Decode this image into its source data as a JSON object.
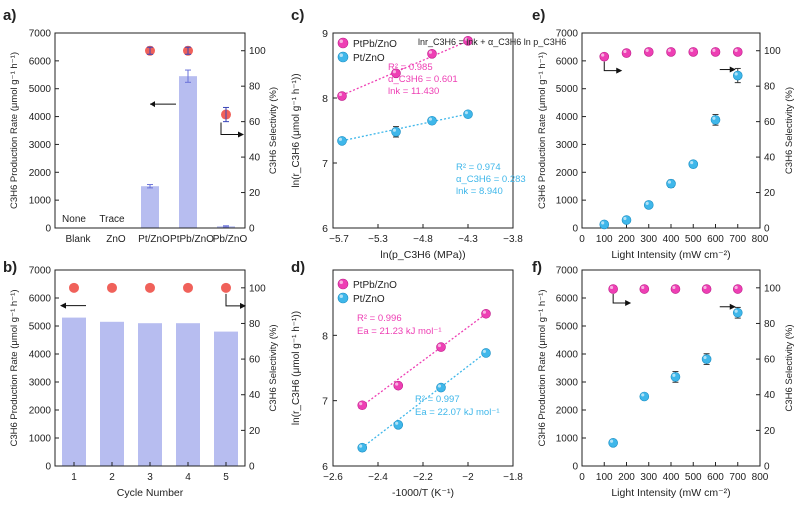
{
  "colors": {
    "bar": "#b7bdf0",
    "bar_edge": "#9aa2e8",
    "selectivity": "#f0615a",
    "ptpb": "#ee3fb4",
    "pt": "#3fb7ea",
    "axis": "#222222"
  },
  "chart_data": [
    {
      "id": "a",
      "panel_label": "a)",
      "type": "bar",
      "categories": [
        "Blank",
        "ZnO",
        "Pt/ZnO",
        "PtPb/ZnO",
        "Pb/ZnO"
      ],
      "series": [
        {
          "values": [
            0,
            0,
            1500,
            5450,
            60
          ],
          "errors": [
            0,
            0,
            60,
            220,
            20
          ],
          "axis": "left",
          "kind": "bar"
        },
        {
          "values": [
            null,
            null,
            100,
            100,
            64
          ],
          "errors": [
            0,
            0,
            2,
            2,
            4
          ],
          "axis": "right",
          "kind": "scatter"
        }
      ],
      "bar_annotations": [
        "None",
        "Trace",
        "",
        "",
        ""
      ],
      "ylabel": "C3H6 Production Rate (μmol g⁻¹ h⁻¹)",
      "y2label": "C3H6 Selectivity (%)",
      "ylim": [
        0,
        7000
      ],
      "yticks": [
        0,
        1000,
        2000,
        3000,
        4000,
        5000,
        6000,
        7000
      ],
      "y2lim": [
        0,
        110
      ],
      "y2ticks": [
        0,
        20,
        40,
        60,
        80,
        100
      ]
    },
    {
      "id": "b",
      "panel_label": "b)",
      "type": "bar",
      "categories": [
        "1",
        "2",
        "3",
        "4",
        "5"
      ],
      "series": [
        {
          "values": [
            5300,
            5150,
            5100,
            5100,
            4800
          ],
          "axis": "left",
          "kind": "bar"
        },
        {
          "values": [
            100,
            100,
            100,
            100,
            100
          ],
          "axis": "right",
          "kind": "scatter"
        }
      ],
      "xlabel": "Cycle Number",
      "ylabel": "C3H6 Production Rate (μmol g⁻¹ h⁻¹)",
      "y2label": "C3H6 Selectivity (%)",
      "ylim": [
        0,
        7000
      ],
      "yticks": [
        0,
        1000,
        2000,
        3000,
        4000,
        5000,
        6000,
        7000
      ],
      "y2lim": [
        0,
        110
      ],
      "y2ticks": [
        0,
        20,
        40,
        60,
        80,
        100
      ]
    },
    {
      "id": "c",
      "panel_label": "c)",
      "type": "scatter",
      "series": [
        {
          "name": "PtPb/ZnO",
          "x": [
            -5.7,
            -5.1,
            -4.7,
            -4.3
          ],
          "y": [
            8.03,
            8.38,
            8.68,
            8.88
          ],
          "errors": [
            0.04,
            0.04,
            0.04,
            0.04
          ],
          "fit": [
            8.02,
            8.89
          ]
        },
        {
          "name": "Pt/ZnO",
          "x": [
            -5.7,
            -5.1,
            -4.7,
            -4.3
          ],
          "y": [
            7.34,
            7.48,
            7.65,
            7.75
          ],
          "errors": [
            0.04,
            0.08,
            0.05,
            0.04
          ],
          "fit": [
            7.33,
            7.76
          ]
        }
      ],
      "equation": "lnr_C3H6 = lnk + α_C3H6 ln p_C3H6",
      "annotations": [
        {
          "r2": "R² = 0.985",
          "alpha": "α_C3H6 = 0.601",
          "lnk": "lnk = 11.430"
        },
        {
          "r2": "R² = 0.974",
          "alpha": "α_C3H6 = 0.283",
          "lnk": "lnk = 8.940"
        }
      ],
      "xlabel": "ln(p_C3H6 (MPa))",
      "ylabel": "ln(r_C3H6 (μmol g⁻¹ h⁻¹))",
      "xlim": [
        -5.8,
        -3.8
      ],
      "xticks": [
        -5.3,
        -4.8,
        -4.3,
        -3.8
      ],
      "xtick_extra": "-5.7",
      "ylim": [
        6,
        9
      ],
      "yticks": [
        6,
        7,
        8,
        9
      ]
    },
    {
      "id": "d",
      "panel_label": "d)",
      "type": "scatter",
      "series": [
        {
          "name": "PtPb/ZnO",
          "x": [
            -2.47,
            -2.31,
            -2.12,
            -1.92
          ],
          "y": [
            6.93,
            7.23,
            7.82,
            8.33
          ],
          "errors": [
            0.04,
            0.04,
            0.04,
            0.04
          ],
          "fit": [
            6.88,
            8.35
          ]
        },
        {
          "name": "Pt/ZnO",
          "x": [
            -2.47,
            -2.31,
            -2.12,
            -1.92
          ],
          "y": [
            6.28,
            6.63,
            7.2,
            7.73
          ],
          "errors": [
            0.04,
            0.04,
            0.04,
            0.04
          ],
          "fit": [
            6.24,
            7.76
          ]
        }
      ],
      "annotations": [
        {
          "r2": "R² = 0.996",
          "ea": "Ea = 21.23 kJ mol⁻¹"
        },
        {
          "r2": "R² = 0.997",
          "ea": "Ea = 22.07 kJ mol⁻¹"
        }
      ],
      "xlabel": "-1000/T (K⁻¹)",
      "ylabel": "ln(r_C3H6 (μmol g⁻¹ h⁻¹))",
      "xlim": [
        -2.6,
        -1.8
      ],
      "xticks": [
        -2.6,
        -2.4,
        -2.2,
        -2.0,
        -1.8
      ],
      "ylim": [
        6,
        9
      ],
      "yticks": [
        6,
        7,
        8
      ]
    },
    {
      "id": "e",
      "panel_label": "e)",
      "type": "scatter",
      "series": [
        {
          "values": [
            6150,
            6280,
            6320,
            6320,
            6320,
            6320,
            6320
          ],
          "x": [
            100,
            200,
            300,
            400,
            500,
            600,
            700
          ],
          "axis": "left",
          "marker": "pink"
        },
        {
          "values": [
            2,
            4.5,
            13,
            25,
            36,
            61,
            86
          ],
          "errors": [
            0.5,
            1,
            1,
            2,
            1,
            3,
            4
          ],
          "x": [
            100,
            200,
            300,
            400,
            500,
            600,
            700
          ],
          "axis": "right",
          "marker": "blue"
        }
      ],
      "xlabel": "Light Intensity (mW cm⁻²)",
      "ylabel": "C3H6 Production Rate (μmol g⁻¹ h⁻¹)",
      "y2label": "C3H6 Selectivity (%)",
      "xlim": [
        0,
        800
      ],
      "xticks": [
        0,
        100,
        200,
        300,
        400,
        500,
        600,
        700,
        800
      ],
      "ylim": [
        0,
        7000
      ],
      "yticks": [
        0,
        1000,
        2000,
        3000,
        4000,
        5000,
        6000,
        7000
      ],
      "y2lim": [
        0,
        110
      ],
      "y2ticks": [
        0,
        20,
        40,
        60,
        80,
        100
      ]
    },
    {
      "id": "f",
      "panel_label": "f)",
      "type": "scatter",
      "series": [
        {
          "values": [
            6320,
            6320,
            6320,
            6320,
            6320
          ],
          "x": [
            140,
            280,
            420,
            560,
            700
          ],
          "axis": "left",
          "marker": "pink"
        },
        {
          "values": [
            13,
            39,
            50,
            60,
            86
          ],
          "errors": [
            1,
            1,
            3,
            3,
            3
          ],
          "x": [
            140,
            280,
            420,
            560,
            700
          ],
          "axis": "right",
          "marker": "blue"
        }
      ],
      "xlabel": "Light Intensity (mW cm⁻²)",
      "ylabel": "C3H6 Production Rate (μmol g⁻¹ h⁻¹)",
      "y2label": "C3H6 Selectivity (%)",
      "xlim": [
        0,
        800
      ],
      "xticks": [
        0,
        100,
        200,
        300,
        400,
        500,
        600,
        700,
        800
      ],
      "ylim": [
        0,
        7000
      ],
      "yticks": [
        0,
        1000,
        2000,
        3000,
        4000,
        5000,
        6000,
        7000
      ],
      "y2lim": [
        0,
        110
      ],
      "y2ticks": [
        0,
        20,
        40,
        60,
        80,
        100
      ]
    }
  ]
}
